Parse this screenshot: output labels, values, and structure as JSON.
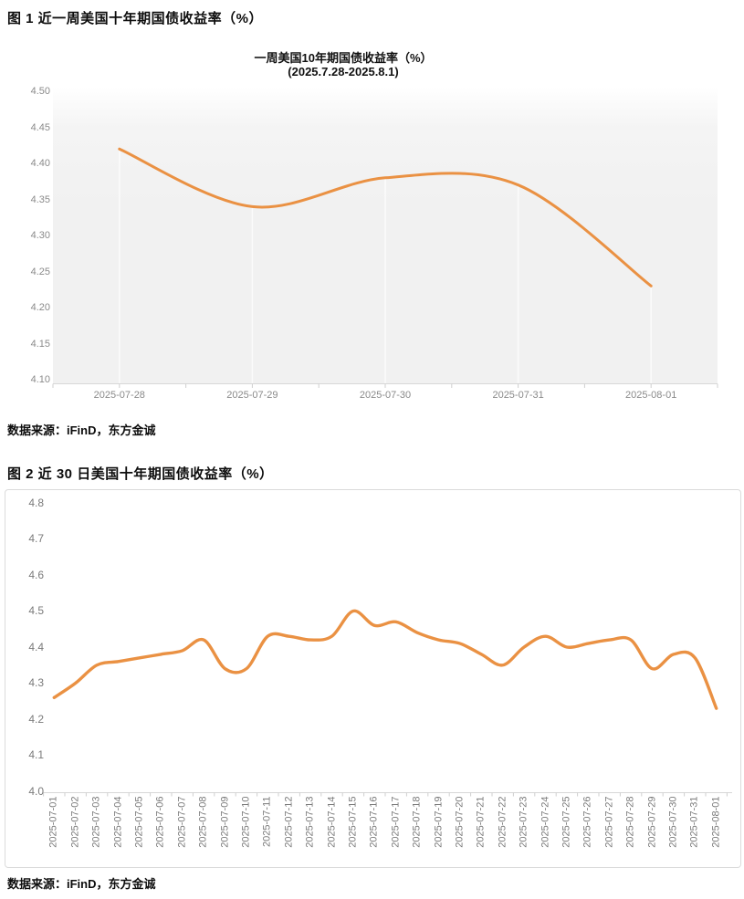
{
  "figure1": {
    "heading": "图 1  近一周美国十年期国债收益率（%）",
    "source": "数据来源：iFinD，东方金诚"
  },
  "figure2": {
    "heading": "图 2  近 30 日美国十年期国债收益率（%）",
    "source": "数据来源：iFinD，东方金诚"
  },
  "colors": {
    "line": "#EA9143",
    "axis_line": "#D8D8D8",
    "tick_mark": "#CFCFCF",
    "dropline": "#FBFBFB",
    "tick_text_chart1": "#8A8A8A",
    "tick_text_chart2": "#7A7A7A",
    "panel_border": "#DBDBDB"
  },
  "chart_data": [
    {
      "type": "line",
      "title": "一周美国10年期国债收益率（%）",
      "subtitle": "(2025.7.28-2025.8.1)",
      "xlabel": "",
      "ylabel": "",
      "legend_position": "none",
      "grid": "vertical-droplines-at-points",
      "smooth": true,
      "ylim": [
        4.1,
        4.5
      ],
      "ytick_labels": [
        "4.50",
        "4.45",
        "4.40",
        "4.35",
        "4.30",
        "4.25",
        "4.20",
        "4.15",
        "4.10"
      ],
      "yticks": [
        4.5,
        4.45,
        4.4,
        4.35,
        4.3,
        4.25,
        4.2,
        4.15,
        4.1
      ],
      "categories": [
        "2025-07-28",
        "2025-07-29",
        "2025-07-30",
        "2025-07-31",
        "2025-08-01"
      ],
      "values": [
        4.42,
        4.34,
        4.38,
        4.37,
        4.23
      ]
    },
    {
      "type": "line",
      "title": "",
      "subtitle": "",
      "xlabel": "",
      "ylabel": "",
      "legend_position": "none",
      "grid": "off",
      "smooth": true,
      "x_label_rotation_deg": 90,
      "ylim": [
        4.0,
        4.8
      ],
      "ytick_labels": [
        "4.8",
        "4.7",
        "4.6",
        "4.5",
        "4.4",
        "4.3",
        "4.2",
        "4.1",
        "4.0"
      ],
      "yticks": [
        4.8,
        4.7,
        4.6,
        4.5,
        4.4,
        4.3,
        4.2,
        4.1,
        4.0
      ],
      "categories": [
        "2025-07-01",
        "2025-07-02",
        "2025-07-03",
        "2025-07-04",
        "2025-07-05",
        "2025-07-06",
        "2025-07-07",
        "2025-07-08",
        "2025-07-09",
        "2025-07-10",
        "2025-07-11",
        "2025-07-12",
        "2025-07-13",
        "2025-07-14",
        "2025-07-15",
        "2025-07-16",
        "2025-07-17",
        "2025-07-18",
        "2025-07-19",
        "2025-07-20",
        "2025-07-21",
        "2025-07-22",
        "2025-07-23",
        "2025-07-24",
        "2025-07-25",
        "2025-07-26",
        "2025-07-27",
        "2025-07-28",
        "2025-07-29",
        "2025-07-30",
        "2025-07-31",
        "2025-08-01"
      ],
      "values": [
        4.26,
        4.3,
        4.35,
        4.36,
        4.37,
        4.38,
        4.39,
        4.42,
        4.34,
        4.34,
        4.43,
        4.43,
        4.42,
        4.43,
        4.5,
        4.46,
        4.47,
        4.44,
        4.42,
        4.41,
        4.38,
        4.35,
        4.4,
        4.43,
        4.4,
        4.41,
        4.42,
        4.42,
        4.34,
        4.38,
        4.37,
        4.23
      ]
    }
  ]
}
